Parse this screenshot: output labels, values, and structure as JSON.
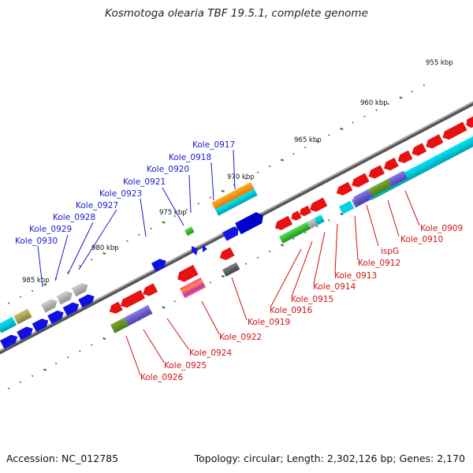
{
  "title": "Kosmotoga olearia TBF 19.5.1, complete genome",
  "footer": {
    "accession": "Accession: NC_012785",
    "topology": "Topology: circular; Length: 2,302,126 bp; Genes: 2,170"
  },
  "scale_labels": [
    "955 kbp",
    "960 kbp",
    "965 kbp",
    "970 kbp",
    "975 kbp",
    "980 kbp",
    "985 kbp"
  ],
  "top_strand_labels": [
    "Kole_0917",
    "Kole_0918",
    "Kole_0920",
    "Kole_0921",
    "Kole_0923",
    "Kole_0927",
    "Kole_0928",
    "Kole_0929",
    "Kole_0930"
  ],
  "bottom_strand_labels": [
    "Kole_0909",
    "Kole_0910",
    "ispG",
    "Kole_0912",
    "Kole_0913",
    "Kole_0914",
    "Kole_0915",
    "Kole_0916",
    "Kole_0919",
    "Kole_0922",
    "Kole_0924",
    "Kole_0925",
    "Kole_0926"
  ],
  "colors": {
    "backbone": "#888888",
    "top_label": "#1a1ad0",
    "bottom_label": "#d01010",
    "tick": "#2a8a2a",
    "forward_gene": "#0a0aee",
    "reverse_gene": "#ee1111",
    "cyan_feature": "#00d8e8",
    "purple_feature": "#7a6ad8",
    "olive_feature": "#6a9a2a",
    "orange_feature": "#ff9a10",
    "gray_feature": "#b0b0b0"
  }
}
